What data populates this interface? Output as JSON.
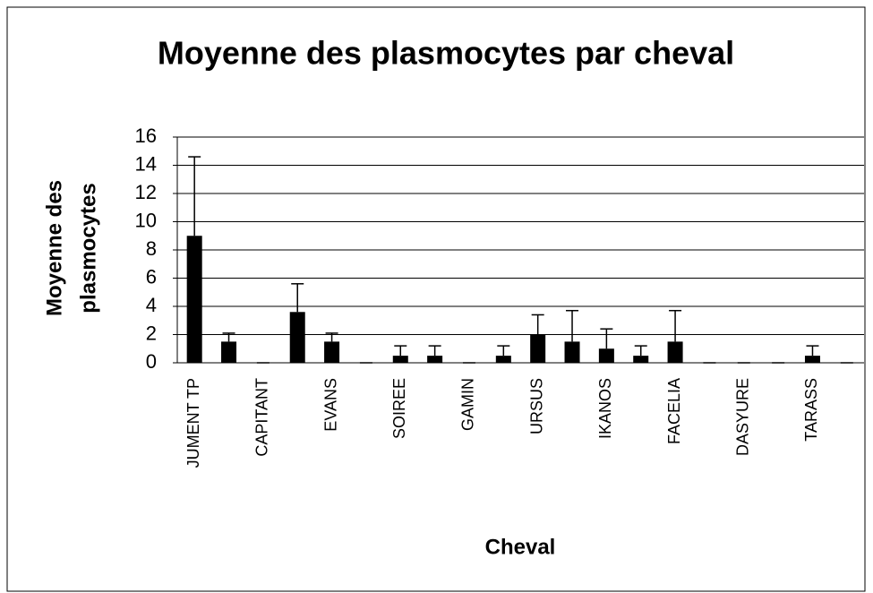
{
  "chart_data": {
    "type": "bar",
    "title": "Moyenne des plasmocytes par cheval",
    "x_label": "Cheval",
    "y_label": [
      "Moyenne des",
      "plasmocytes"
    ],
    "categories": [
      "JUMENT TP",
      null,
      "CAPITANT",
      null,
      "EVANS",
      null,
      "SOIREE",
      null,
      "GAMIN",
      null,
      "URSUS",
      null,
      "IKANOS",
      null,
      "FACELIA",
      null,
      "DASYURE",
      null,
      "TARASS",
      null
    ],
    "series": [
      {
        "color": "#000000",
        "values": [
          9,
          1.5,
          0,
          3.6,
          1.5,
          0,
          0.5,
          0.5,
          0,
          0.5,
          2,
          1.5,
          1,
          0.5,
          1.5,
          0,
          0,
          0,
          0.5,
          0
        ],
        "errors": [
          5.6,
          0.6,
          0,
          2.0,
          0.6,
          0,
          0.7,
          0.7,
          0,
          0.7,
          1.4,
          2.2,
          1.4,
          0.7,
          2.2,
          0,
          0,
          0,
          0.7,
          0
        ]
      }
    ],
    "ylim": [
      0,
      16
    ],
    "yticks": [
      0,
      2,
      4,
      6,
      8,
      10,
      12,
      14,
      16
    ],
    "grid": true
  }
}
